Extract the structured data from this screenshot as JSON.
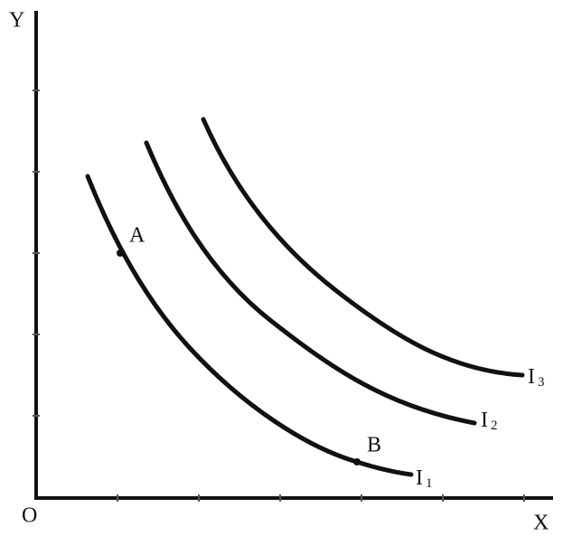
{
  "axes": {
    "y_label": "Y",
    "x_label": "X",
    "origin_label": "O"
  },
  "points": [
    {
      "label": "A"
    },
    {
      "label": "B"
    }
  ],
  "curves": [
    {
      "label": "I",
      "subscript": "1"
    },
    {
      "label": "I",
      "subscript": "2"
    },
    {
      "label": "I",
      "subscript": "3"
    }
  ]
}
